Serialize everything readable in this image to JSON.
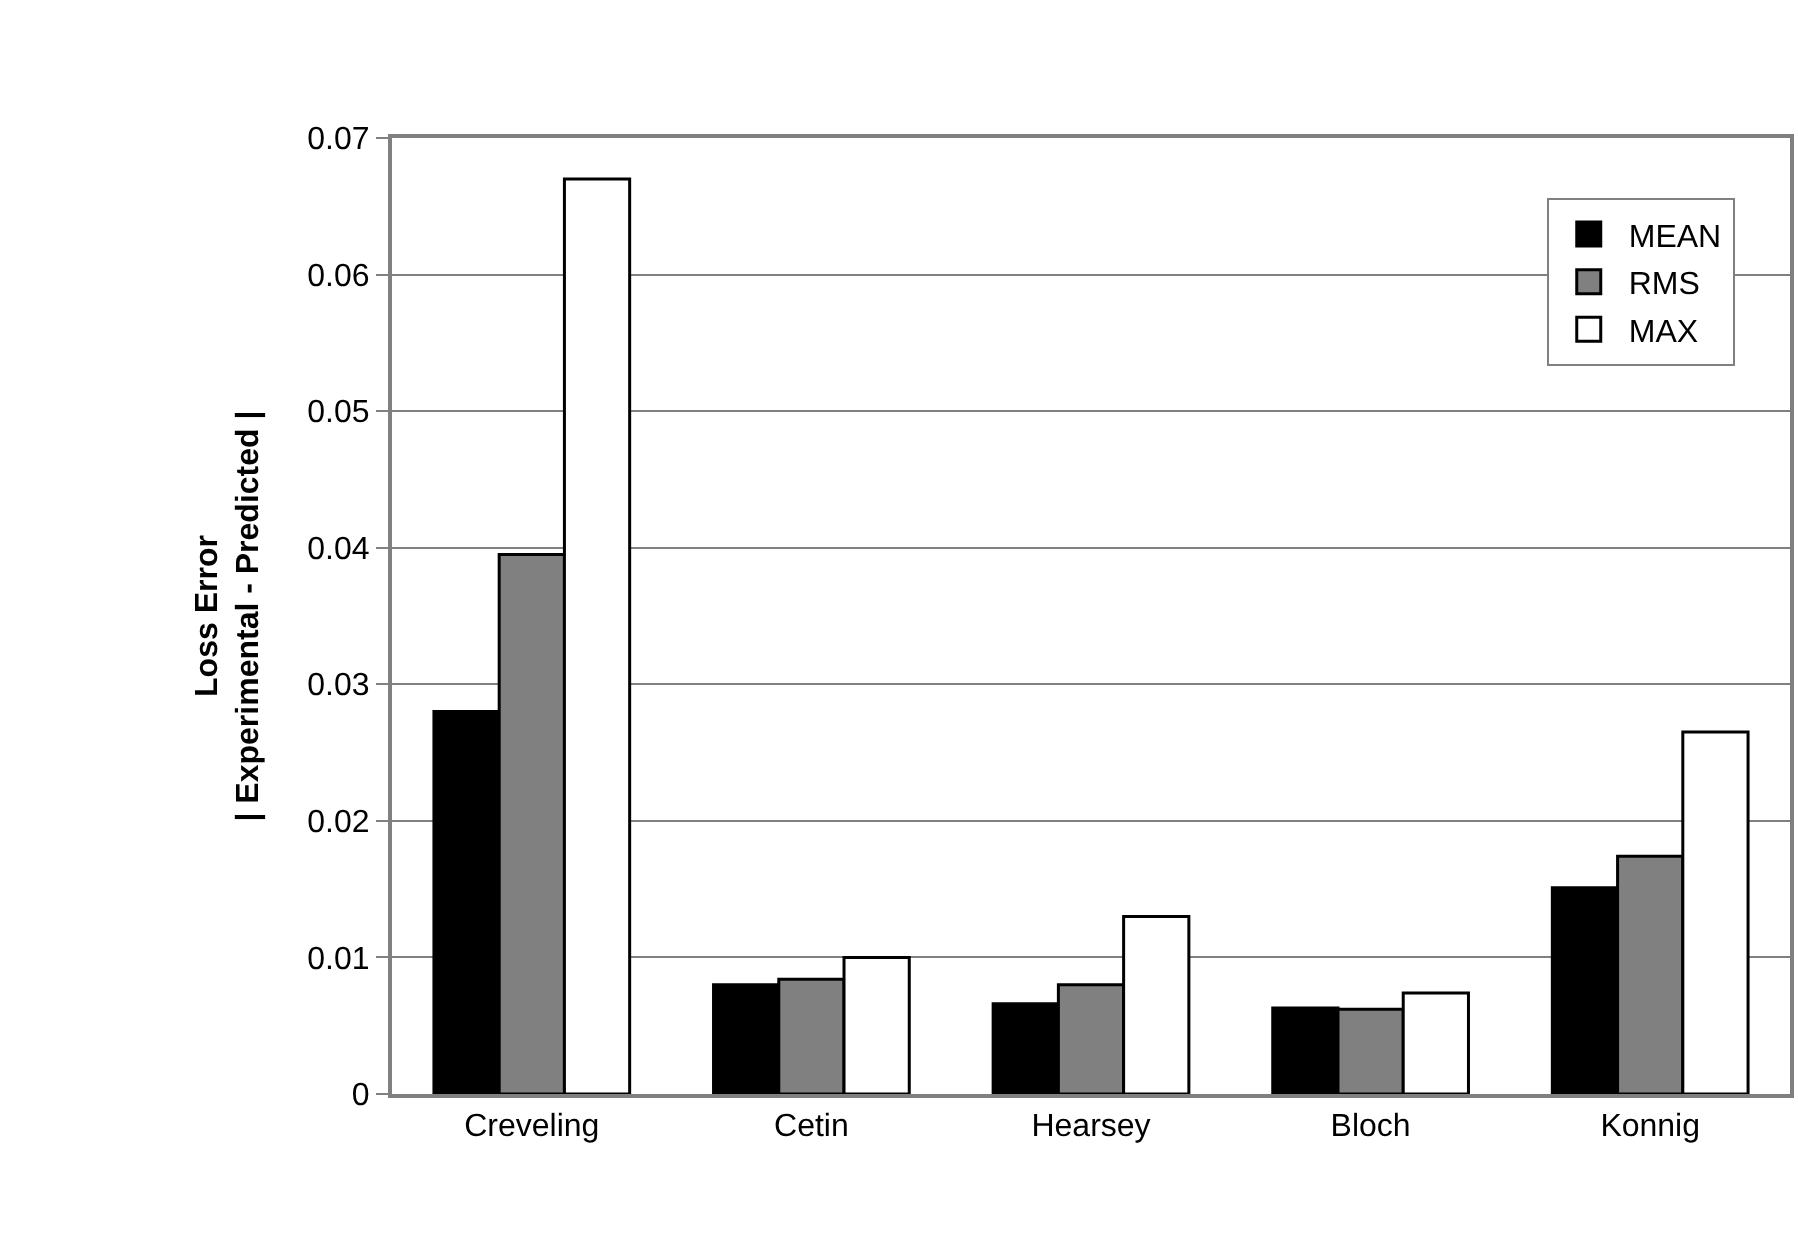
{
  "chart_data": {
    "type": "bar",
    "ylabel": "Loss Error\n| Experimental - Predicted |",
    "categories": [
      "Creveling",
      "Cetin",
      "Hearsey",
      "Bloch",
      "Konnig"
    ],
    "series": [
      {
        "name": "MEAN",
        "color": "#000000",
        "values": [
          0.028,
          0.008,
          0.0066,
          0.0063,
          0.0151
        ]
      },
      {
        "name": "RMS",
        "color": "#808080",
        "values": [
          0.0395,
          0.0084,
          0.008,
          0.0062,
          0.0174
        ]
      },
      {
        "name": "MAX",
        "color": "#ffffff",
        "values": [
          0.067,
          0.01,
          0.013,
          0.0074,
          0.0265
        ]
      }
    ],
    "ylim": [
      0,
      0.07
    ],
    "yticks": [
      0,
      0.01,
      0.02,
      0.03,
      0.04,
      0.05,
      0.06,
      0.07
    ],
    "grid": "y",
    "legend": "top right"
  }
}
